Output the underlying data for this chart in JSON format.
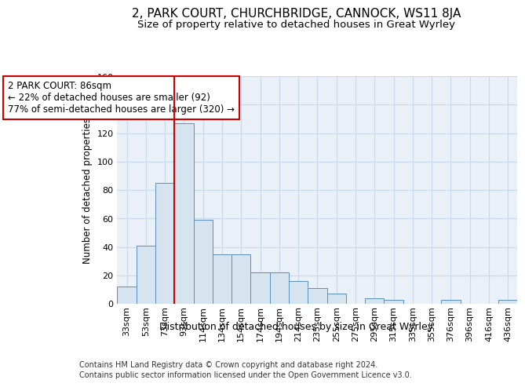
{
  "title": "2, PARK COURT, CHURCHBRIDGE, CANNOCK, WS11 8JA",
  "subtitle": "Size of property relative to detached houses in Great Wyrley",
  "xlabel": "Distribution of detached houses by size in Great Wyrley",
  "ylabel": "Number of detached properties",
  "footnote1": "Contains HM Land Registry data © Crown copyright and database right 2024.",
  "footnote2": "Contains public sector information licensed under the Open Government Licence v3.0.",
  "bin_labels": [
    "33sqm",
    "53sqm",
    "73sqm",
    "93sqm",
    "114sqm",
    "134sqm",
    "154sqm",
    "174sqm",
    "194sqm",
    "214sqm",
    "235sqm",
    "255sqm",
    "275sqm",
    "295sqm",
    "315sqm",
    "335sqm",
    "355sqm",
    "376sqm",
    "396sqm",
    "416sqm",
    "436sqm"
  ],
  "bar_values": [
    12,
    41,
    85,
    127,
    59,
    35,
    35,
    22,
    22,
    16,
    11,
    7,
    0,
    4,
    3,
    0,
    0,
    3,
    0,
    0,
    3
  ],
  "bar_color": "#d6e4f0",
  "bar_edge_color": "#5a8fc0",
  "grid_color": "#c8d8e8",
  "background_color": "#eaf0f8",
  "vline_color": "#cc0000",
  "vline_position": 2.5,
  "annotation_text": "2 PARK COURT: 86sqm\n← 22% of detached houses are smaller (92)\n77% of semi-detached houses are larger (320) →",
  "annotation_box_color": "#ffffff",
  "annotation_box_edge": "#cc0000",
  "ylim": [
    0,
    160
  ],
  "yticks": [
    0,
    20,
    40,
    60,
    80,
    100,
    120,
    140,
    160
  ],
  "title_fontsize": 11,
  "subtitle_fontsize": 9.5,
  "ylabel_fontsize": 8.5,
  "xlabel_fontsize": 9,
  "tick_fontsize": 8,
  "footnote_fontsize": 7,
  "annotation_fontsize": 8.5
}
